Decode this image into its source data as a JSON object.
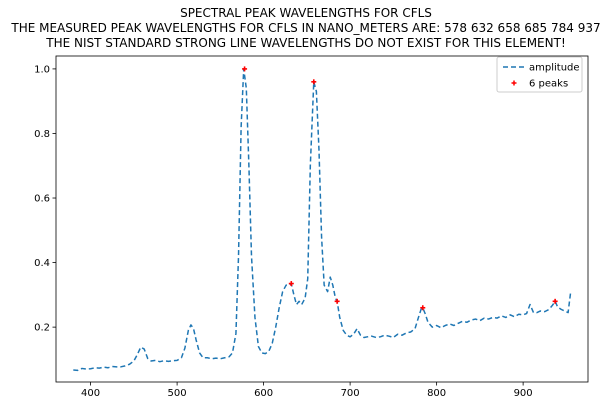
{
  "chart_data": {
    "type": "line",
    "title_lines": [
      "SPECTRAL PEAK WAVELENGTHS FOR CFLS",
      "THE MEASURED PEAK WAVELENGTHS FOR CFLS IN NANO_METERS ARE: 578 632 658 685 784 937",
      "THE NIST STANDARD STRONG LINE WAVELENGTHS DO NOT EXIST FOR THIS ELEMENT!"
    ],
    "xlabel": "",
    "ylabel": "",
    "xlim": [
      360,
      975
    ],
    "ylim": [
      0.03,
      1.04
    ],
    "x_ticks": [
      400,
      500,
      600,
      700,
      800,
      900
    ],
    "y_ticks": [
      0.2,
      0.4,
      0.6,
      0.8,
      1.0
    ],
    "y_tick_labels": [
      "0.2",
      "0.4",
      "0.6",
      "0.8",
      "1.0"
    ],
    "grid": false,
    "legend_position": "top-right",
    "series": [
      {
        "name": "amplitude",
        "style": "dashed",
        "color": "#1f77b4",
        "points": [
          [
            380,
            0.067
          ],
          [
            385,
            0.066
          ],
          [
            390,
            0.072
          ],
          [
            395,
            0.07
          ],
          [
            400,
            0.071
          ],
          [
            405,
            0.074
          ],
          [
            410,
            0.073
          ],
          [
            415,
            0.076
          ],
          [
            420,
            0.074
          ],
          [
            425,
            0.078
          ],
          [
            430,
            0.077
          ],
          [
            435,
            0.077
          ],
          [
            440,
            0.08
          ],
          [
            445,
            0.085
          ],
          [
            450,
            0.095
          ],
          [
            454,
            0.115
          ],
          [
            458,
            0.138
          ],
          [
            462,
            0.132
          ],
          [
            466,
            0.103
          ],
          [
            470,
            0.095
          ],
          [
            475,
            0.097
          ],
          [
            480,
            0.093
          ],
          [
            485,
            0.096
          ],
          [
            490,
            0.094
          ],
          [
            495,
            0.096
          ],
          [
            500,
            0.097
          ],
          [
            505,
            0.105
          ],
          [
            509,
            0.135
          ],
          [
            513,
            0.19
          ],
          [
            516,
            0.207
          ],
          [
            519,
            0.195
          ],
          [
            522,
            0.16
          ],
          [
            526,
            0.12
          ],
          [
            530,
            0.105
          ],
          [
            535,
            0.105
          ],
          [
            540,
            0.102
          ],
          [
            545,
            0.104
          ],
          [
            550,
            0.102
          ],
          [
            555,
            0.105
          ],
          [
            560,
            0.108
          ],
          [
            564,
            0.12
          ],
          [
            568,
            0.18
          ],
          [
            571,
            0.42
          ],
          [
            574,
            0.82
          ],
          [
            577,
            1.0
          ],
          [
            580,
            0.94
          ],
          [
            583,
            0.7
          ],
          [
            586,
            0.42
          ],
          [
            590,
            0.23
          ],
          [
            594,
            0.14
          ],
          [
            598,
            0.12
          ],
          [
            602,
            0.118
          ],
          [
            606,
            0.125
          ],
          [
            610,
            0.15
          ],
          [
            614,
            0.2
          ],
          [
            618,
            0.26
          ],
          [
            622,
            0.31
          ],
          [
            626,
            0.33
          ],
          [
            630,
            0.33
          ],
          [
            632,
            0.335
          ],
          [
            635,
            0.3
          ],
          [
            638,
            0.27
          ],
          [
            641,
            0.28
          ],
          [
            644,
            0.27
          ],
          [
            648,
            0.29
          ],
          [
            651,
            0.35
          ],
          [
            654,
            0.7
          ],
          [
            658,
            0.96
          ],
          [
            661,
            0.93
          ],
          [
            664,
            0.75
          ],
          [
            667,
            0.48
          ],
          [
            670,
            0.33
          ],
          [
            674,
            0.31
          ],
          [
            677,
            0.355
          ],
          [
            680,
            0.33
          ],
          [
            683,
            0.29
          ],
          [
            685,
            0.28
          ],
          [
            688,
            0.23
          ],
          [
            692,
            0.19
          ],
          [
            696,
            0.175
          ],
          [
            700,
            0.17
          ],
          [
            704,
            0.178
          ],
          [
            708,
            0.195
          ],
          [
            712,
            0.175
          ],
          [
            716,
            0.168
          ],
          [
            720,
            0.17
          ],
          [
            725,
            0.172
          ],
          [
            730,
            0.168
          ],
          [
            735,
            0.17
          ],
          [
            740,
            0.175
          ],
          [
            745,
            0.172
          ],
          [
            750,
            0.168
          ],
          [
            755,
            0.178
          ],
          [
            760,
            0.175
          ],
          [
            765,
            0.182
          ],
          [
            770,
            0.185
          ],
          [
            775,
            0.195
          ],
          [
            779,
            0.23
          ],
          [
            782,
            0.255
          ],
          [
            784,
            0.26
          ],
          [
            787,
            0.24
          ],
          [
            790,
            0.215
          ],
          [
            795,
            0.2
          ],
          [
            800,
            0.205
          ],
          [
            805,
            0.198
          ],
          [
            810,
            0.205
          ],
          [
            815,
            0.21
          ],
          [
            820,
            0.205
          ],
          [
            825,
            0.212
          ],
          [
            830,
            0.218
          ],
          [
            835,
            0.215
          ],
          [
            840,
            0.222
          ],
          [
            845,
            0.225
          ],
          [
            850,
            0.22
          ],
          [
            855,
            0.228
          ],
          [
            860,
            0.225
          ],
          [
            865,
            0.23
          ],
          [
            870,
            0.228
          ],
          [
            875,
            0.235
          ],
          [
            880,
            0.23
          ],
          [
            885,
            0.238
          ],
          [
            890,
            0.232
          ],
          [
            895,
            0.24
          ],
          [
            900,
            0.238
          ],
          [
            904,
            0.242
          ],
          [
            908,
            0.27
          ],
          [
            912,
            0.245
          ],
          [
            916,
            0.245
          ],
          [
            920,
            0.25
          ],
          [
            925,
            0.248
          ],
          [
            930,
            0.255
          ],
          [
            934,
            0.268
          ],
          [
            937,
            0.28
          ],
          [
            940,
            0.262
          ],
          [
            944,
            0.255
          ],
          [
            948,
            0.25
          ],
          [
            952,
            0.245
          ],
          [
            955,
            0.31
          ]
        ]
      },
      {
        "name": "6 peaks",
        "style": "markers",
        "color": "#ff0000",
        "points": [
          [
            578,
            1.0
          ],
          [
            632,
            0.335
          ],
          [
            658,
            0.96
          ],
          [
            685,
            0.28
          ],
          [
            784,
            0.26
          ],
          [
            937,
            0.28
          ]
        ]
      }
    ]
  }
}
